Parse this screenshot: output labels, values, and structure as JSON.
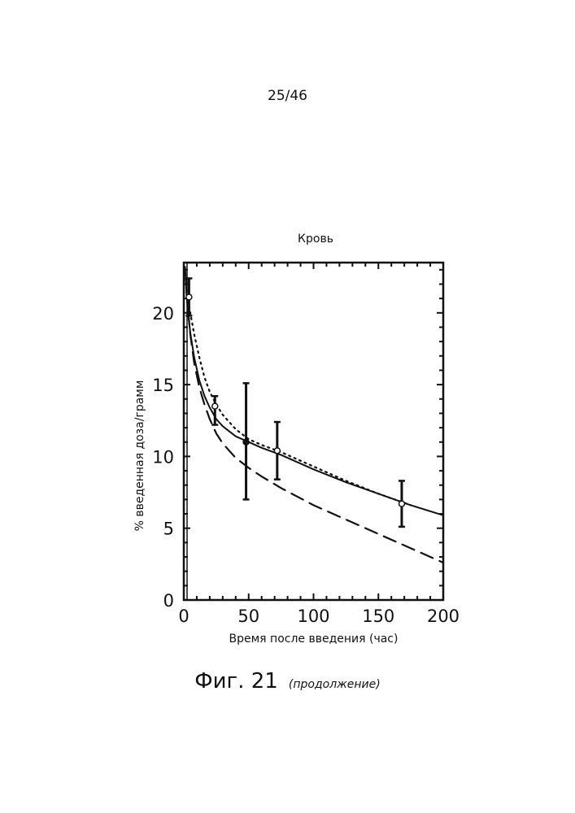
{
  "page": {
    "number": "25/46",
    "figure_label": "Фиг. 21",
    "figure_note": "(продолжение)"
  },
  "chart_data": {
    "type": "line",
    "title": "Кровь",
    "xlabel": "Время после введения (час)",
    "ylabel": "% введенная доза/грамм",
    "xlim": [
      0,
      200
    ],
    "ylim": [
      0,
      23.5
    ],
    "x_ticks": [
      "0",
      "50",
      "100",
      "150",
      "200"
    ],
    "y_ticks": [
      "0",
      "5",
      "10",
      "15",
      "20"
    ],
    "grid": false,
    "legend": "none",
    "series": [
      {
        "style": "solid",
        "x": [
          1,
          2,
          3,
          5,
          8,
          12,
          16,
          20,
          25,
          30,
          40,
          50,
          60,
          75,
          100,
          125,
          150,
          175,
          200
        ],
        "y": [
          23.2,
          21.5,
          20.2,
          18.6,
          16.9,
          15.3,
          14.2,
          13.4,
          12.6,
          12.1,
          11.4,
          11.0,
          10.6,
          10.1,
          9.1,
          8.2,
          7.4,
          6.6,
          5.9
        ]
      },
      {
        "style": "dotted",
        "x": [
          1,
          3,
          5,
          8,
          12,
          16,
          20,
          25,
          30,
          40,
          50,
          60,
          75,
          100,
          125,
          150,
          175
        ],
        "y": [
          22.8,
          21.0,
          20.0,
          18.5,
          16.9,
          15.5,
          14.5,
          13.6,
          12.9,
          11.9,
          11.2,
          10.8,
          10.3,
          9.3,
          8.3,
          7.4,
          6.6
        ]
      },
      {
        "style": "dashed",
        "x": [
          2,
          5,
          8,
          12,
          16,
          20,
          25,
          30,
          40,
          50,
          60,
          75,
          100,
          125,
          150,
          175,
          200
        ],
        "y": [
          21.5,
          18.5,
          16.5,
          14.8,
          13.6,
          12.6,
          11.6,
          10.9,
          9.9,
          9.2,
          8.6,
          7.8,
          6.6,
          5.6,
          4.6,
          3.6,
          2.6
        ]
      }
    ],
    "measurements": {
      "x": [
        4,
        24,
        48,
        72,
        168
      ],
      "y": [
        21.1,
        13.5,
        11.0,
        10.4,
        6.7
      ],
      "err_low": [
        19.8,
        12.2,
        7.0,
        8.4,
        5.1
      ],
      "err_high": [
        22.4,
        14.2,
        15.1,
        12.4,
        8.3
      ]
    }
  }
}
